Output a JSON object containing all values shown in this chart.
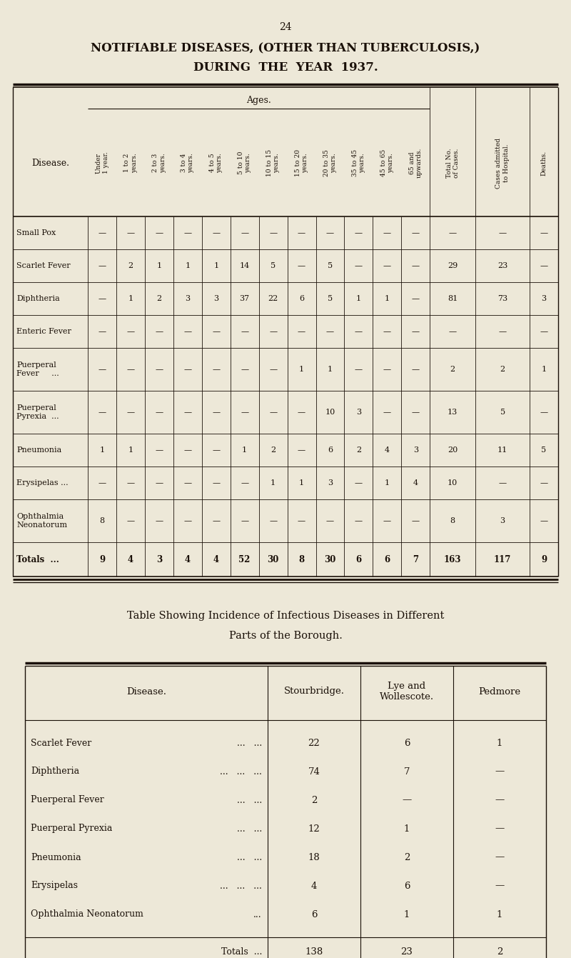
{
  "bg_color": "#ede8d8",
  "text_color": "#1a1008",
  "page_number": "24",
  "title_line1": "NOTIFIABLE DISEASES, (OTHER THAN TUBERCULOSIS,)",
  "title_line2": "DURING  THE  YEAR  1937.",
  "table1_ages_header": "Ages.",
  "table1_col_headers": [
    "Under\n1 year.",
    "1 to 2\nyears.",
    "2 to 3\nyears.",
    "3 to 4\nyears.",
    "4 to 5\nyears.",
    "5 to 10\nyears.",
    "10 to 15\nyears.",
    "15 to 20\nyears.",
    "20 to 35\nyears.",
    "35 to 45\nyears.",
    "45 to 65\nyears.",
    "65 and\nupwards.",
    "Total No.\nof Cases.",
    "Cases admitted\nto Hospital.",
    "Deaths."
  ],
  "table1_row_label": "Disease.",
  "table1_diseases": [
    "Small Pox",
    "Scarlet Fever",
    "Diphtheria",
    "Enteric Fever",
    "Puerperal\nFever     ...",
    "Puerperal\nPyrexia  ...",
    "Pneumonia",
    "Erysipelas ...",
    "Ophthalmia\nNeonatorum",
    "Totals  ..."
  ],
  "table1_data": [
    [
      "—",
      "—",
      "—",
      "—",
      "—",
      "—",
      "—",
      "—",
      "—",
      "—",
      "—",
      "—",
      "—",
      "—",
      "—"
    ],
    [
      "—",
      "2",
      "1",
      "1",
      "1",
      "14",
      "5",
      "—",
      "5",
      "—",
      "—",
      "—",
      "29",
      "23",
      "—"
    ],
    [
      "—",
      "1",
      "2",
      "3",
      "3",
      "37",
      "22",
      "6",
      "5",
      "1",
      "1",
      "—",
      "81",
      "73",
      "3"
    ],
    [
      "—",
      "—",
      "—",
      "—",
      "—",
      "—",
      "—",
      "—",
      "—",
      "—",
      "—",
      "—",
      "—",
      "—",
      "—"
    ],
    [
      "—",
      "—",
      "—",
      "—",
      "—",
      "—",
      "—",
      "1",
      "1",
      "—",
      "—",
      "—",
      "2",
      "2",
      "1"
    ],
    [
      "—",
      "—",
      "—",
      "—",
      "—",
      "—",
      "—",
      "—",
      "10",
      "3",
      "—",
      "—",
      "13",
      "5",
      "—"
    ],
    [
      "1",
      "1",
      "—",
      "—",
      "—",
      "1",
      "2",
      "—",
      "6",
      "2",
      "4",
      "3",
      "20",
      "11",
      "5"
    ],
    [
      "—",
      "—",
      "—",
      "—",
      "—",
      "—",
      "1",
      "1",
      "3",
      "—",
      "1",
      "4",
      "10",
      "—",
      "—"
    ],
    [
      "8",
      "—",
      "—",
      "—",
      "—",
      "—",
      "—",
      "—",
      "—",
      "—",
      "—",
      "—",
      "8",
      "3",
      "—"
    ],
    [
      "9",
      "4",
      "3",
      "4",
      "4",
      "52",
      "30",
      "8",
      "30",
      "6",
      "6",
      "7",
      "163",
      "117",
      "9"
    ]
  ],
  "table2_title_line1": "Table Showing Incidence of Infectious Diseases in Different",
  "table2_title_line2": "Parts of the Borough.",
  "table2_col_headers": [
    "Disease.",
    "Stourbridge.",
    "Lye and\nWollescote.",
    "Pedmore"
  ],
  "table2_diseases": [
    "Scarlet Fever",
    "Diphtheria",
    "Puerperal Fever",
    "Puerperal Pyrexia",
    "Pneumonia",
    "Erysipelas",
    "Ophthalmia Neonatorum"
  ],
  "table2_dots": [
    "...   ...",
    "...   ...   ...",
    "...   ...",
    "...   ...",
    "...   ...",
    "...   ...   ...",
    "..."
  ],
  "table2_data": [
    [
      "22",
      "6",
      "1"
    ],
    [
      "74",
      "7",
      "—"
    ],
    [
      "2",
      "—",
      "—"
    ],
    [
      "12",
      "1",
      "—"
    ],
    [
      "18",
      "2",
      "—"
    ],
    [
      "4",
      "6",
      "—"
    ],
    [
      "6",
      "1",
      "1"
    ]
  ],
  "table2_totals": [
    "138",
    "23",
    "2"
  ]
}
